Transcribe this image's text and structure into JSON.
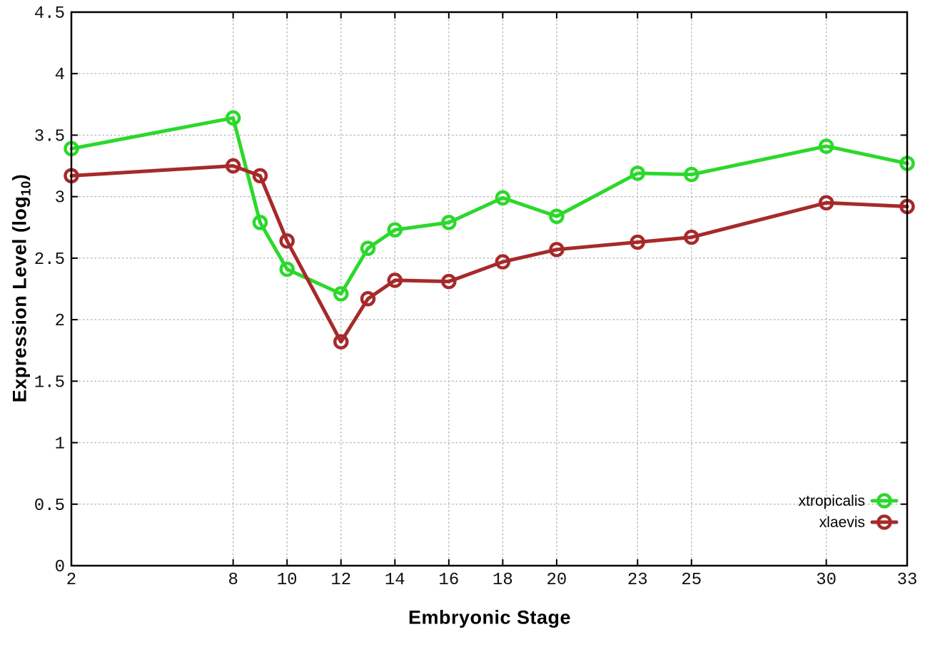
{
  "chart_data": {
    "type": "line",
    "title": "",
    "xlabel": "Embryonic Stage",
    "ylabel_prefix": "Expression Level (log",
    "ylabel_sub": "10",
    "ylabel_suffix": ")",
    "x": [
      2,
      8,
      9,
      10,
      12,
      13,
      14,
      16,
      18,
      20,
      23,
      25,
      30,
      33
    ],
    "series": [
      {
        "name": "xtropicalis",
        "color": "#2cd82c",
        "values": [
          3.39,
          3.64,
          2.79,
          2.41,
          2.21,
          2.58,
          2.73,
          2.79,
          2.99,
          2.84,
          3.19,
          3.18,
          3.41,
          3.27
        ]
      },
      {
        "name": "xlaevis",
        "color": "#a62a2a",
        "values": [
          3.17,
          3.25,
          3.17,
          2.64,
          1.82,
          2.17,
          2.32,
          2.31,
          2.47,
          2.57,
          2.63,
          2.67,
          2.95,
          2.92
        ]
      }
    ],
    "xticks": [
      2,
      8,
      10,
      12,
      14,
      16,
      18,
      20,
      23,
      25,
      30,
      33
    ],
    "yticks": [
      0,
      0.5,
      1,
      1.5,
      2,
      2.5,
      3,
      3.5,
      4,
      4.5
    ],
    "xlim": [
      2,
      33
    ],
    "ylim": [
      0,
      4.5
    ],
    "grid": true,
    "grid_color": "#b8b8b8",
    "axis_color": "#000000",
    "legend_position": "bottom-right",
    "marker": "open-circle"
  }
}
